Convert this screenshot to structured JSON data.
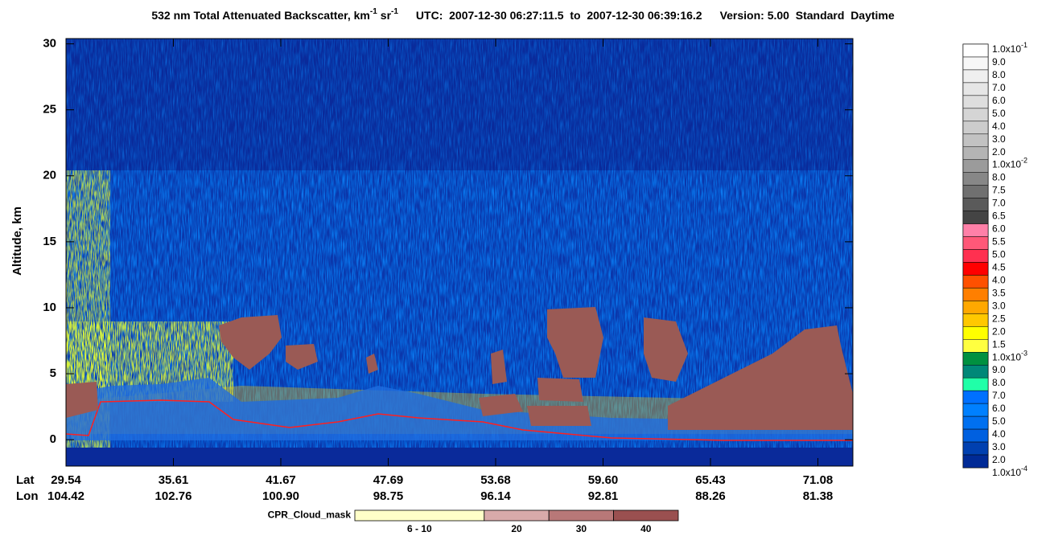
{
  "chart_data": {
    "type": "heatmap",
    "title": {
      "quantity": "532 nm Total Attenuated Backscatter, km",
      "exp1": "-1",
      "unit2": "sr",
      "exp2": "-1",
      "utc": "UTC:  2007-12-30 06:27:11.5  to  2007-12-30 06:39:16.2",
      "version": "Version: 5.00  Standard  Daytime"
    },
    "y_label": "Altitude, km",
    "ylim": [
      -2,
      30.4
    ],
    "yticks": [
      0,
      5,
      10,
      15,
      20,
      25,
      30
    ],
    "x_rows": [
      {
        "name": "Lat",
        "categories": [
          "29.54",
          "35.61",
          "41.67",
          "47.69",
          "53.68",
          "59.60",
          "65.43",
          "71.08"
        ]
      },
      {
        "name": "Lon",
        "categories": [
          "104.42",
          "102.76",
          "100.90",
          "98.75",
          "96.14",
          "92.81",
          "88.26",
          "81.38"
        ]
      }
    ],
    "colorbar": {
      "labels": [
        {
          "text": "1.0x10",
          "exp": "-1"
        },
        {
          "text": "9.0"
        },
        {
          "text": "8.0"
        },
        {
          "text": "7.0"
        },
        {
          "text": "6.0"
        },
        {
          "text": "5.0"
        },
        {
          "text": "4.0"
        },
        {
          "text": "3.0"
        },
        {
          "text": "2.0"
        },
        {
          "text": "1.0x10",
          "exp": "-2"
        },
        {
          "text": "8.0"
        },
        {
          "text": "7.5"
        },
        {
          "text": "7.0"
        },
        {
          "text": "6.5"
        },
        {
          "text": "6.0"
        },
        {
          "text": "5.5"
        },
        {
          "text": "5.0"
        },
        {
          "text": "4.5"
        },
        {
          "text": "4.0"
        },
        {
          "text": "3.5"
        },
        {
          "text": "3.0"
        },
        {
          "text": "2.5"
        },
        {
          "text": "2.0"
        },
        {
          "text": "1.5"
        },
        {
          "text": "1.0x10",
          "exp": "-3"
        },
        {
          "text": "9.0"
        },
        {
          "text": "8.0"
        },
        {
          "text": "7.0"
        },
        {
          "text": "6.0"
        },
        {
          "text": "5.0"
        },
        {
          "text": "4.0"
        },
        {
          "text": "3.0"
        },
        {
          "text": "2.0"
        },
        {
          "text": "1.0x10",
          "exp": "-4"
        }
      ],
      "colors": [
        "#ffffff",
        "#f7f7f7",
        "#efefef",
        "#e6e6e6",
        "#dedede",
        "#d5d5d5",
        "#cccccc",
        "#c2c2c2",
        "#b4b4b4",
        "#9b9b9b",
        "#878787",
        "#707070",
        "#5a5a5a",
        "#444444",
        "#ff80a8",
        "#ff5878",
        "#ff3050",
        "#ff0000",
        "#ff5000",
        "#ff7f00",
        "#ffa800",
        "#ffc800",
        "#ffff00",
        "#ffff40",
        "#009040",
        "#008878",
        "#20ffa8",
        "#0070ff",
        "#0080ff",
        "#0070f0",
        "#0060e0",
        "#0040b0",
        "#002a96"
      ]
    },
    "mask_legend": {
      "title": "CPR_Cloud_mask",
      "labels": [
        "6 - 10",
        "20",
        "30",
        "40"
      ],
      "colors": [
        "#ffffc8",
        "#d8aaaa",
        "#b87878",
        "#9a5050"
      ]
    }
  }
}
